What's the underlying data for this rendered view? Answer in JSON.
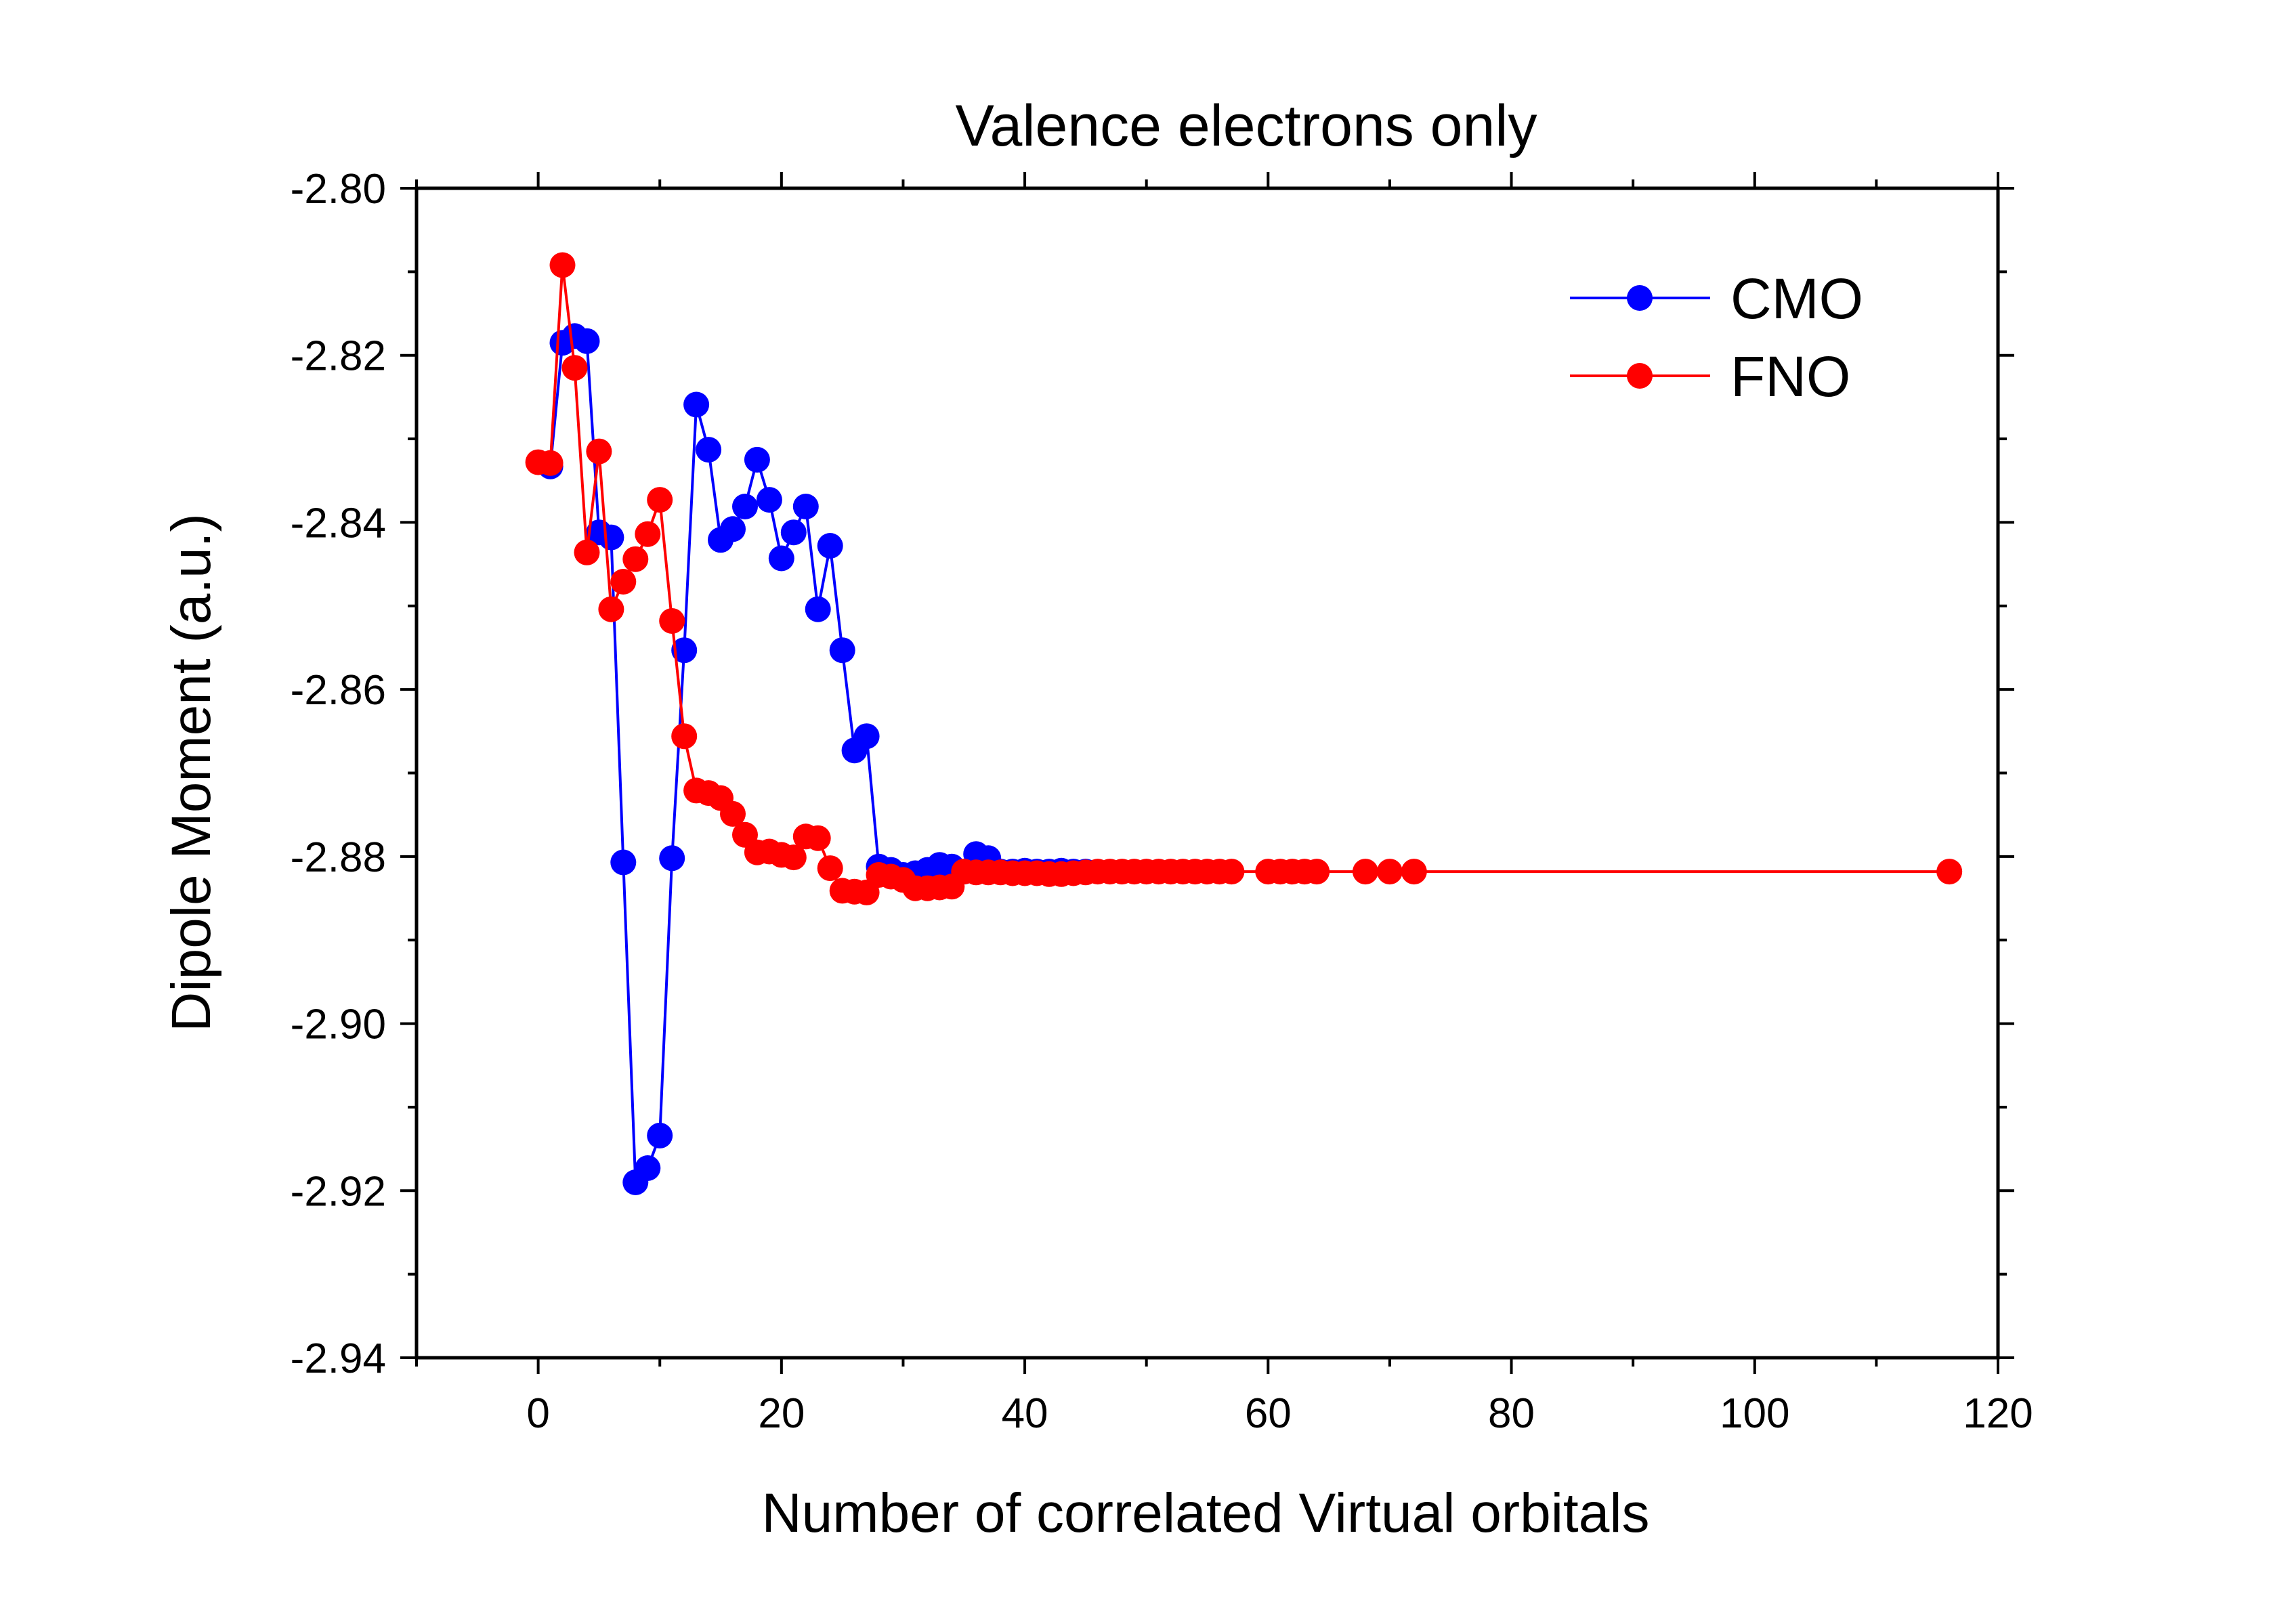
{
  "chart_data": {
    "type": "line",
    "title": "Valence electrons only",
    "xlabel": "Number of correlated Virtual orbitals",
    "ylabel": "Dipole Moment (a.u.)",
    "xlim": [
      -10,
      120
    ],
    "ylim": [
      -2.94,
      -2.8
    ],
    "xticks": [
      0,
      20,
      40,
      60,
      80,
      100,
      120
    ],
    "xtick_labels": [
      "0",
      "20",
      "40",
      "60",
      "80",
      "100",
      "120"
    ],
    "yticks": [
      -2.94,
      -2.92,
      -2.9,
      -2.88,
      -2.86,
      -2.84,
      -2.82,
      -2.8
    ],
    "ytick_labels": [
      "-2.94",
      "-2.92",
      "-2.90",
      "-2.88",
      "-2.86",
      "-2.84",
      "-2.82",
      "-2.80"
    ],
    "legend_position": "top-right",
    "grid": false,
    "series": [
      {
        "name": "CMO",
        "color": "#0000ff",
        "x": [
          1,
          2,
          3,
          4,
          5,
          6,
          7,
          8,
          9,
          10,
          11,
          12,
          13,
          14,
          15,
          16,
          17,
          18,
          19,
          20,
          21,
          22,
          23,
          24,
          25,
          26,
          27,
          28,
          29,
          30,
          31,
          32,
          33,
          34,
          35,
          36,
          37,
          38,
          39,
          40,
          41,
          42,
          43,
          44,
          45
        ],
        "y": [
          -2.8333,
          -2.8185,
          -2.8177,
          -2.8183,
          -2.8412,
          -2.8418,
          -2.8807,
          -2.919,
          -2.9173,
          -2.9134,
          -2.8802,
          -2.8553,
          -2.8259,
          -2.8313,
          -2.8421,
          -2.8408,
          -2.8381,
          -2.8325,
          -2.8373,
          -2.8443,
          -2.8412,
          -2.8381,
          -2.8504,
          -2.8428,
          -2.8553,
          -2.8673,
          -2.8656,
          -2.8812,
          -2.8816,
          -2.8822,
          -2.882,
          -2.8816,
          -2.881,
          -2.8812,
          -2.8818,
          -2.8797,
          -2.8802,
          -2.8818,
          -2.8818,
          -2.8817,
          -2.8818,
          -2.8818,
          -2.8817,
          -2.8818,
          -2.8818
        ]
      },
      {
        "name": "FNO",
        "color": "#ff0000",
        "x": [
          0,
          1,
          2,
          3,
          4,
          5,
          6,
          7,
          8,
          9,
          10,
          11,
          12,
          13,
          14,
          15,
          16,
          17,
          18,
          19,
          20,
          21,
          22,
          23,
          24,
          25,
          26,
          27,
          28,
          29,
          30,
          31,
          32,
          33,
          34,
          35,
          36,
          37,
          38,
          39,
          40,
          41,
          42,
          43,
          44,
          45,
          46,
          47,
          48,
          49,
          50,
          51,
          52,
          53,
          54,
          55,
          56,
          57,
          60,
          61,
          62,
          63,
          64,
          68,
          70,
          72,
          116
        ],
        "y": [
          -2.8328,
          -2.8329,
          -2.8092,
          -2.8215,
          -2.8436,
          -2.8315,
          -2.8504,
          -2.8471,
          -2.8444,
          -2.8414,
          -2.8373,
          -2.8518,
          -2.8656,
          -2.8721,
          -2.8724,
          -2.873,
          -2.8749,
          -2.8774,
          -2.8795,
          -2.8794,
          -2.8798,
          -2.8801,
          -2.8776,
          -2.8778,
          -2.8814,
          -2.8841,
          -2.8842,
          -2.8843,
          -2.8822,
          -2.8824,
          -2.8828,
          -2.8838,
          -2.8838,
          -2.8837,
          -2.8836,
          -2.8818,
          -2.8819,
          -2.8819,
          -2.8819,
          -2.882,
          -2.882,
          -2.882,
          -2.8821,
          -2.8821,
          -2.882,
          -2.8819,
          -2.8818,
          -2.8818,
          -2.8818,
          -2.8818,
          -2.8818,
          -2.8818,
          -2.8818,
          -2.8818,
          -2.8818,
          -2.8818,
          -2.8818,
          -2.8818,
          -2.8818,
          -2.8818,
          -2.8818,
          -2.8818,
          -2.8818,
          -2.8818,
          -2.8818,
          -2.8818,
          -2.8818
        ]
      }
    ]
  }
}
